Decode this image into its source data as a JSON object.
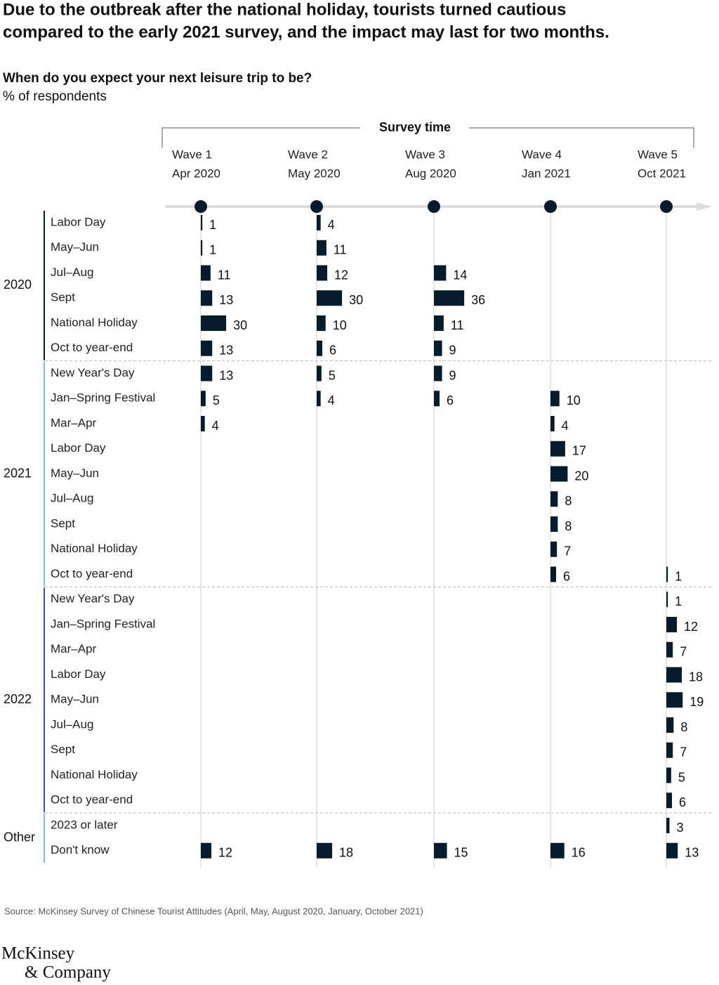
{
  "chart_data": {
    "type": "bar",
    "title": [
      "Due to the outbreak after the national holiday, tourists turned cautious",
      "compared to the early 2021 survey, and the impact may last for two months."
    ],
    "subtitle": "When do you expect your next leisure trip to be?",
    "unit": "% of respondents",
    "axis_title": "Survey time",
    "groups": [
      {
        "name": "2020",
        "color": "#051c2c",
        "categories": [
          "Labor Day",
          "May–Jun",
          "Jul–Aug",
          "Sept",
          "National Holiday",
          "Oct to year-end"
        ]
      },
      {
        "name": "2021",
        "color": "#6ec1e4",
        "categories": [
          "New Year's Day",
          "Jan–Spring Festival",
          "Mar–Apr",
          "Labor Day",
          "May–Jun",
          "Jul–Aug",
          "Sept",
          "National Holiday",
          "Oct to year-end"
        ]
      },
      {
        "name": "2022",
        "color": "#2251ff",
        "categories": [
          "New Year's Day",
          "Jan–Spring Festival",
          "Mar–Apr",
          "Labor Day",
          "May–Jun",
          "Jul–Aug",
          "Sept",
          "National Holiday",
          "Oct to year-end"
        ]
      },
      {
        "name": "Other",
        "color": "#6ec1e4",
        "categories": [
          "2023 or later",
          "Don't know"
        ]
      }
    ],
    "series": [
      {
        "name": "Wave 1",
        "date": "Apr 2020",
        "color": "#051c2c",
        "values": [
          1,
          1,
          11,
          13,
          30,
          13,
          13,
          5,
          4,
          null,
          null,
          null,
          null,
          null,
          null,
          null,
          null,
          null,
          null,
          null,
          null,
          null,
          null,
          null,
          null,
          12
        ]
      },
      {
        "name": "Wave 2",
        "date": "May 2020",
        "color": "#051c2c",
        "values": [
          4,
          11,
          12,
          30,
          10,
          6,
          5,
          4,
          null,
          null,
          null,
          null,
          null,
          null,
          null,
          null,
          null,
          null,
          null,
          null,
          null,
          null,
          null,
          null,
          null,
          18
        ]
      },
      {
        "name": "Wave 3",
        "date": "Aug 2020",
        "color": "#051c2c",
        "values": [
          null,
          null,
          14,
          36,
          11,
          9,
          9,
          6,
          null,
          null,
          null,
          null,
          null,
          null,
          null,
          null,
          null,
          null,
          null,
          null,
          null,
          null,
          null,
          null,
          null,
          15
        ]
      },
      {
        "name": "Wave 4",
        "date": "Jan 2021",
        "color": "#051c2c",
        "values": [
          null,
          null,
          null,
          null,
          null,
          null,
          null,
          10,
          4,
          17,
          20,
          8,
          8,
          7,
          6,
          null,
          null,
          null,
          null,
          null,
          null,
          null,
          null,
          null,
          null,
          16
        ]
      },
      {
        "name": "Wave 5",
        "date": "Oct 2021",
        "color": "#051c2c",
        "values": [
          null,
          null,
          null,
          null,
          null,
          null,
          null,
          null,
          null,
          null,
          null,
          null,
          null,
          null,
          1,
          1,
          12,
          7,
          18,
          19,
          8,
          7,
          5,
          6,
          3,
          13
        ]
      }
    ],
    "source": "Source: McKinsey Survey of Chinese Tourist Attitudes (April, May, August 2020, January, October 2021)"
  },
  "logo": [
    "McKinsey",
    "& Company"
  ]
}
